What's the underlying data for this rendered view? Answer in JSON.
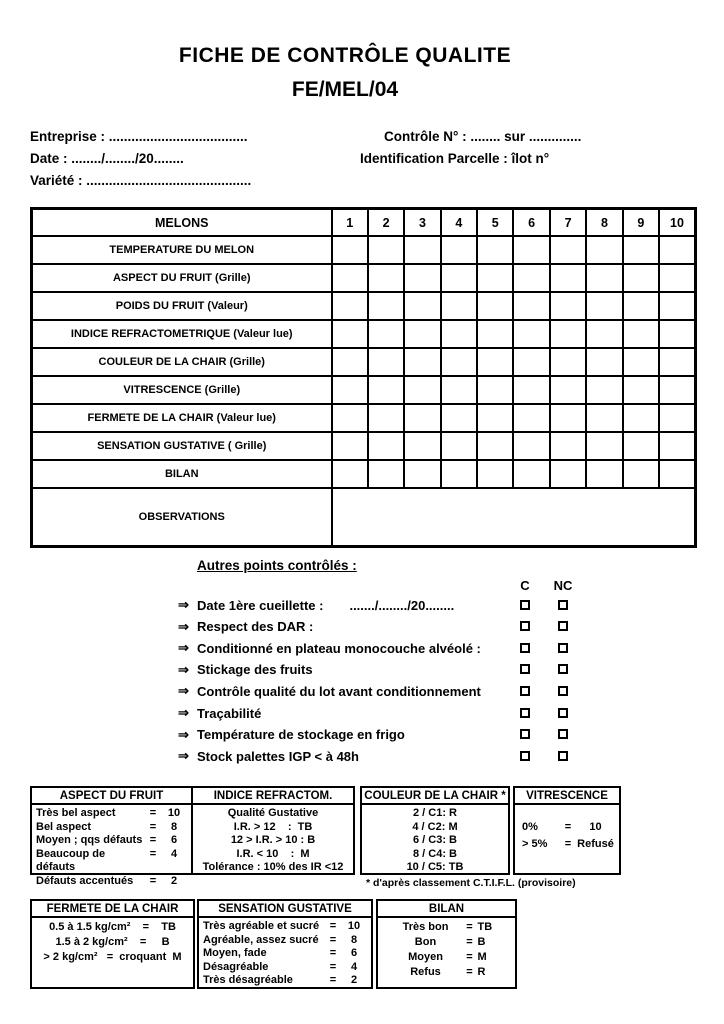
{
  "page": {
    "title_line1": "FICHE DE CONTRÔLE QUALITE",
    "title_line2": "FE/MEL/04"
  },
  "info": {
    "entreprise": "Entreprise : .....................................",
    "date": "Date : ......../......../20........",
    "variete": "Variété : ............................................",
    "controle": "Contrôle N°  :    ........  sur ..............",
    "identification": "Identification Parcelle : îlot n°"
  },
  "main_table": {
    "header": [
      "MELONS",
      "1",
      "2",
      "3",
      "4",
      "5",
      "6",
      "7",
      "8",
      "9",
      "10"
    ],
    "rows": [
      "TEMPERATURE DU MELON",
      "ASPECT DU FRUIT (Grille)",
      "POIDS DU FRUIT (Valeur)",
      "INDICE REFRACTOMETRIQUE (Valeur lue)",
      "COULEUR DE LA CHAIR (Grille)",
      "VITRESCENCE (Grille)",
      "FERMETE DE LA CHAIR (Valeur lue)",
      "SENSATION GUSTATIVE  ( Grille)",
      "BILAN"
    ],
    "observations_label": "OBSERVATIONS"
  },
  "checklist": {
    "heading": "Autres points contrôlés :",
    "col_c": "C",
    "col_nc": "NC",
    "arrow": "⇒",
    "items": [
      {
        "text": "Date 1ère cueillette :",
        "extra": "......./......../20........"
      },
      {
        "text": "Respect des DAR :",
        "extra": ""
      },
      {
        "text": "Conditionné en plateau monocouche alvéolé :",
        "extra": ""
      },
      {
        "text": "Stickage des fruits",
        "extra": ""
      },
      {
        "text": "Contrôle qualité du lot avant conditionnement",
        "extra": ""
      },
      {
        "text": "Traçabilité",
        "extra": ""
      },
      {
        "text": "Température de stockage en frigo",
        "extra": ""
      },
      {
        "text": "Stock palettes IGP < à 48h",
        "extra": ""
      }
    ]
  },
  "symbols": {
    "equals": "="
  },
  "aspect_table": {
    "title": "ASPECT DU FRUIT",
    "rows": [
      {
        "label": "Très bel aspect",
        "value": "10"
      },
      {
        "label": "Bel aspect",
        "value": "8"
      },
      {
        "label": "Moyen ; qqs défauts",
        "value": "6"
      },
      {
        "label": "Beaucoup de défauts",
        "value": "4"
      },
      {
        "label": "Défauts accentués",
        "value": "2"
      }
    ]
  },
  "indice_table": {
    "title": "INDICE REFRACTOM.",
    "rows": [
      "Qualité Gustative",
      "I.R. > 12    :  TB",
      "12 > I.R. > 10 : B",
      "I.R. < 10    :  M",
      "Tolérance : 10% des IR <12"
    ]
  },
  "couleur_table": {
    "title": "COULEUR DE LA CHAIR *",
    "rows": [
      "2 / C1: R",
      "4 / C2: M",
      "6 / C3: B",
      "8 / C4: B",
      "10 / C5: TB"
    ],
    "footnote": "* d'après classement C.T.I.F.L. (provisoire)"
  },
  "vitrescence_table": {
    "title": "VITRESCENCE",
    "rows": [
      {
        "label": "0%",
        "value": "10"
      },
      {
        "label": "> 5%",
        "value": "Refusé"
      }
    ]
  },
  "fermete_table": {
    "title": "FERMETE DE LA CHAIR",
    "rows": [
      "0.5 à 1.5 kg/cm²    =    TB",
      "1.5 à 2 kg/cm²    =     B",
      "> 2 kg/cm²   =  croquant  M"
    ]
  },
  "sensation_table": {
    "title": "SENSATION GUSTATIVE",
    "rows": [
      {
        "label": "Très agréable et sucré",
        "value": "10"
      },
      {
        "label": "Agréable, assez sucré",
        "value": "8"
      },
      {
        "label": "Moyen, fade",
        "value": "6"
      },
      {
        "label": "Désagréable",
        "value": "4"
      },
      {
        "label": "Très désagréable",
        "value": "2"
      }
    ]
  },
  "bilan_table": {
    "title": "BILAN",
    "rows": [
      {
        "label": "Très bon",
        "value": "TB"
      },
      {
        "label": "Bon",
        "value": "B"
      },
      {
        "label": "Moyen",
        "value": "M"
      },
      {
        "label": "Refus",
        "value": "R"
      }
    ]
  }
}
